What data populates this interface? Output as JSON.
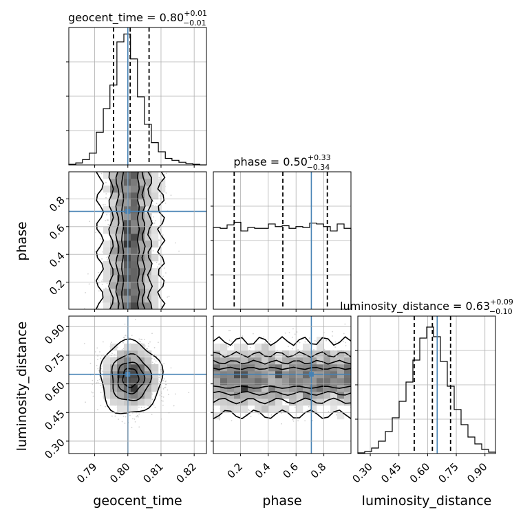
{
  "figure": {
    "background": "#ffffff",
    "accent": "#4682b4"
  },
  "chart_data": {
    "type": "corner",
    "parameters": [
      "geocent_time",
      "phase",
      "luminosity_distance"
    ],
    "truth": {
      "geocent_time": 0.8,
      "phase": 0.71,
      "luminosity_distance": 0.65
    },
    "ranges": {
      "geocent_time": [
        0.7822,
        0.8237
      ],
      "phase": [
        0.005,
        0.995
      ],
      "luminosity_distance": [
        0.235,
        0.955
      ]
    },
    "ticks": {
      "geocent_time": [
        0.79,
        0.8,
        0.81,
        0.82
      ],
      "phase": [
        0.2,
        0.4,
        0.6,
        0.8
      ],
      "luminosity_distance": [
        0.3,
        0.45,
        0.6,
        0.75,
        0.9
      ]
    },
    "tick_labels": {
      "geocent_time": [
        "0.79",
        "0.80",
        "0.81",
        "0.82"
      ],
      "phase": [
        "0.2",
        "0.4",
        "0.6",
        "0.8"
      ],
      "luminosity_distance": [
        "0.30",
        "0.45",
        "0.60",
        "0.75",
        "0.90"
      ]
    },
    "axis_labels": {
      "geocent_time": "geocent_time",
      "phase": "phase",
      "luminosity_distance": "luminosity_distance"
    },
    "titles": {
      "geocent_time": {
        "name": "geocent_time",
        "median": "0.80",
        "plus": "+0.01",
        "minus": "−0.01"
      },
      "phase": {
        "name": "phase",
        "median": "0.50",
        "plus": "+0.33",
        "minus": "−0.34"
      },
      "luminosity_distance": {
        "name": "luminosity_distance",
        "median": "0.63",
        "plus": "+0.09",
        "minus": "−0.10"
      }
    },
    "quantiles": {
      "geocent_time": [
        0.7957,
        0.8007,
        0.8064
      ],
      "phase": [
        0.155,
        0.505,
        0.825
      ],
      "luminosity_distance": [
        0.53,
        0.625,
        0.72
      ]
    },
    "histograms": {
      "geocent_time": {
        "edges": [
          0.7822,
          0.7843,
          0.7863,
          0.7884,
          0.7905,
          0.7926,
          0.7946,
          0.7967,
          0.7988,
          0.8008,
          0.8029,
          0.805,
          0.8071,
          0.8092,
          0.8113,
          0.8133,
          0.8154,
          0.8175,
          0.8196,
          0.8217,
          0.8237
        ],
        "counts": [
          0.5,
          1.5,
          4,
          9,
          25,
          43,
          61,
          94,
          100,
          81,
          52,
          31,
          17,
          10,
          5,
          3.5,
          2,
          1,
          0.5,
          0
        ],
        "ymax": 105
      },
      "phase": {
        "edges": [
          0.005,
          0.0545,
          0.104,
          0.1535,
          0.203,
          0.2525,
          0.302,
          0.3515,
          0.401,
          0.4505,
          0.5,
          0.5495,
          0.599,
          0.6485,
          0.698,
          0.7475,
          0.797,
          0.8465,
          0.896,
          0.9455,
          0.995
        ],
        "counts": [
          94,
          93,
          97,
          100,
          90,
          94,
          93,
          93,
          98,
          95,
          96,
          93,
          95,
          94,
          99,
          98,
          95,
          90,
          98,
          93
        ],
        "ymax": 158
      },
      "luminosity_distance": {
        "edges": [
          0.235,
          0.271,
          0.307,
          0.343,
          0.379,
          0.415,
          0.451,
          0.487,
          0.523,
          0.559,
          0.595,
          0.631,
          0.667,
          0.703,
          0.739,
          0.775,
          0.811,
          0.847,
          0.883,
          0.919,
          0.955
        ],
        "counts": [
          0.5,
          1.5,
          4,
          9,
          16,
          26,
          38,
          52,
          68,
          84,
          92,
          85,
          67,
          49,
          32,
          21,
          12,
          7,
          3,
          1
        ],
        "ymax": 100
      }
    },
    "grid": true
  }
}
